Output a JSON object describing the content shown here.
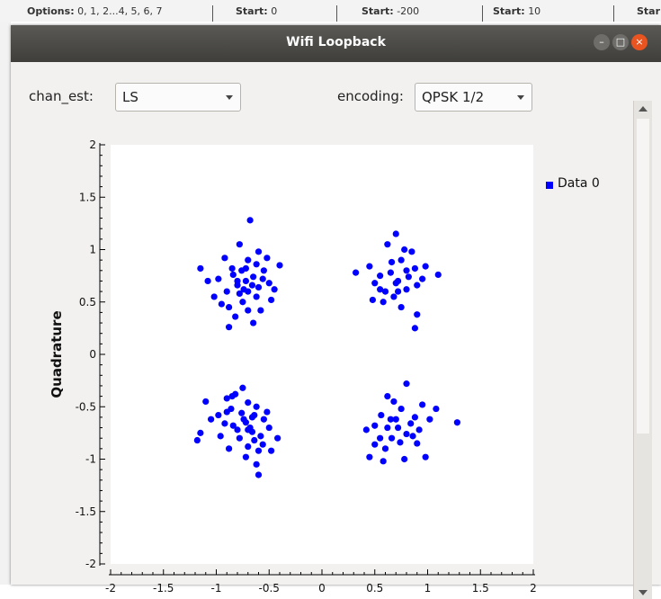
{
  "background": {
    "cells": [
      {
        "prefix": "Options:",
        "text": "0, 1, 2...4, 5, 6, 7"
      },
      {
        "prefix": "Start:",
        "text": "0"
      },
      {
        "prefix": "Start:",
        "text": "-200"
      },
      {
        "prefix": "Start:",
        "text": "10"
      },
      {
        "prefix": "Star",
        "text": ""
      }
    ]
  },
  "window": {
    "title": "Wifi Loopback",
    "buttons": {
      "minimize": "–",
      "maximize": "□",
      "close": "×"
    },
    "colors": {
      "minimize": "#6e6d69",
      "maximize": "#6e6d69",
      "close": "#e95420"
    }
  },
  "controls": {
    "chan_est": {
      "label": "chan_est:",
      "value": "LS"
    },
    "encoding": {
      "label": "encoding:",
      "value": "QPSK 1/2"
    }
  },
  "chart_data": {
    "type": "scatter",
    "title": "",
    "xlabel": "",
    "ylabel": "Quadrature",
    "xlim": [
      -2,
      2
    ],
    "ylim": [
      -2,
      2
    ],
    "grid": false,
    "legend_position": "top-right",
    "x_ticks": [
      -2,
      -1.5,
      -1,
      -0.5,
      0,
      0.5,
      1,
      1.5,
      2
    ],
    "y_ticks": [
      2,
      1.5,
      1,
      0.5,
      0,
      -0.5,
      -1,
      -1.5,
      -2
    ],
    "x_tick_labels": [
      "-2",
      "-1.5",
      "-1",
      "-0.5",
      "0",
      "0.5",
      "1",
      "1.5",
      "2"
    ],
    "y_tick_labels": [
      "2",
      "1.5",
      "1",
      "0.5",
      "0",
      "-0.5",
      "-1",
      "-1.5",
      "-2"
    ],
    "series": [
      {
        "name": "Data 0",
        "color": "#0000ff",
        "points": [
          [
            -0.72,
            0.7
          ],
          [
            -0.65,
            0.74
          ],
          [
            -0.8,
            0.66
          ],
          [
            -0.55,
            0.8
          ],
          [
            -0.9,
            0.6
          ],
          [
            -0.7,
            0.9
          ],
          [
            -0.62,
            0.55
          ],
          [
            -0.85,
            0.82
          ],
          [
            -0.5,
            0.68
          ],
          [
            -0.75,
            0.5
          ],
          [
            -0.68,
            1.28
          ],
          [
            -0.78,
            1.05
          ],
          [
            -0.92,
            0.92
          ],
          [
            -0.6,
            0.98
          ],
          [
            -0.45,
            0.62
          ],
          [
            -0.98,
            0.72
          ],
          [
            -0.7,
            0.42
          ],
          [
            -0.82,
            0.36
          ],
          [
            -0.65,
            0.3
          ],
          [
            -0.88,
            0.26
          ],
          [
            -1.15,
            0.82
          ],
          [
            -1.02,
            0.55
          ],
          [
            -0.4,
            0.85
          ],
          [
            -0.58,
            0.42
          ],
          [
            -0.95,
            0.48
          ],
          [
            -0.74,
            0.62
          ],
          [
            -0.66,
            0.66
          ],
          [
            -0.56,
            0.72
          ],
          [
            -0.84,
            0.76
          ],
          [
            -0.78,
            0.58
          ],
          [
            -1.08,
            0.7
          ],
          [
            -0.48,
            0.52
          ],
          [
            -0.62,
            0.86
          ],
          [
            -0.76,
            0.8
          ],
          [
            -0.52,
            0.92
          ],
          [
            -0.88,
            0.45
          ],
          [
            -0.7,
            0.6
          ],
          [
            -0.6,
            0.64
          ],
          [
            -0.8,
            0.7
          ],
          [
            -0.72,
            0.82
          ],
          [
            0.72,
            0.7
          ],
          [
            0.65,
            0.78
          ],
          [
            0.8,
            0.62
          ],
          [
            0.55,
            0.75
          ],
          [
            0.88,
            0.82
          ],
          [
            0.6,
            0.6
          ],
          [
            0.75,
            0.9
          ],
          [
            0.9,
            0.66
          ],
          [
            0.5,
            0.68
          ],
          [
            0.68,
            0.55
          ],
          [
            0.7,
            1.15
          ],
          [
            0.62,
            1.05
          ],
          [
            0.78,
            1.0
          ],
          [
            0.85,
            0.98
          ],
          [
            0.32,
            0.78
          ],
          [
            0.45,
            0.84
          ],
          [
            0.95,
            0.72
          ],
          [
            1.1,
            0.76
          ],
          [
            0.75,
            0.45
          ],
          [
            0.9,
            0.38
          ],
          [
            0.88,
            0.25
          ],
          [
            0.58,
            0.5
          ],
          [
            0.66,
            0.88
          ],
          [
            0.82,
            0.74
          ],
          [
            0.72,
            0.6
          ],
          [
            0.55,
            0.62
          ],
          [
            0.98,
            0.84
          ],
          [
            0.48,
            0.52
          ],
          [
            0.7,
            0.68
          ],
          [
            0.8,
            0.8
          ],
          [
            -0.72,
            -0.65
          ],
          [
            -0.66,
            -0.6
          ],
          [
            -0.8,
            -0.72
          ],
          [
            -0.58,
            -0.78
          ],
          [
            -0.9,
            -0.55
          ],
          [
            -0.7,
            -0.88
          ],
          [
            -0.62,
            -0.5
          ],
          [
            -0.85,
            -0.4
          ],
          [
            -0.5,
            -0.7
          ],
          [
            -0.75,
            -0.32
          ],
          [
            -0.82,
            -0.38
          ],
          [
            -0.9,
            -0.42
          ],
          [
            -1.1,
            -0.45
          ],
          [
            -1.15,
            -0.75
          ],
          [
            -1.05,
            -0.62
          ],
          [
            -0.96,
            -0.78
          ],
          [
            -0.42,
            -0.8
          ],
          [
            -0.48,
            -0.92
          ],
          [
            -0.62,
            -1.05
          ],
          [
            -0.6,
            -1.15
          ],
          [
            -0.72,
            -0.98
          ],
          [
            -0.88,
            -0.9
          ],
          [
            -0.98,
            -0.58
          ],
          [
            -0.55,
            -0.62
          ],
          [
            -0.68,
            -0.7
          ],
          [
            -0.76,
            -0.56
          ],
          [
            -0.64,
            -0.82
          ],
          [
            -0.52,
            -0.55
          ],
          [
            -0.84,
            -0.68
          ],
          [
            -0.7,
            -0.46
          ],
          [
            -1.18,
            -0.82
          ],
          [
            -0.6,
            -0.92
          ],
          [
            -0.78,
            -0.8
          ],
          [
            -0.66,
            -0.74
          ],
          [
            -0.92,
            -0.66
          ],
          [
            -0.56,
            -0.86
          ],
          [
            -0.74,
            -0.62
          ],
          [
            -0.86,
            -0.52
          ],
          [
            -0.64,
            -0.58
          ],
          [
            -0.7,
            -0.72
          ],
          [
            0.72,
            -0.7
          ],
          [
            0.65,
            -0.62
          ],
          [
            0.8,
            -0.76
          ],
          [
            0.55,
            -0.8
          ],
          [
            0.88,
            -0.6
          ],
          [
            0.6,
            -0.9
          ],
          [
            0.75,
            -0.52
          ],
          [
            0.9,
            -0.85
          ],
          [
            0.5,
            -0.68
          ],
          [
            0.68,
            -0.45
          ],
          [
            0.8,
            -0.28
          ],
          [
            0.62,
            -0.4
          ],
          [
            0.95,
            -0.48
          ],
          [
            1.08,
            -0.52
          ],
          [
            1.28,
            -0.65
          ],
          [
            0.42,
            -0.72
          ],
          [
            0.45,
            -0.98
          ],
          [
            0.58,
            -1.02
          ],
          [
            0.78,
            -1.0
          ],
          [
            0.98,
            -0.98
          ],
          [
            0.7,
            -0.62
          ],
          [
            0.84,
            -0.66
          ],
          [
            0.66,
            -0.8
          ],
          [
            0.56,
            -0.58
          ],
          [
            0.92,
            -0.72
          ],
          [
            0.74,
            -0.84
          ],
          [
            0.62,
            -0.7
          ],
          [
            0.86,
            -0.78
          ],
          [
            1.02,
            -0.62
          ],
          [
            0.5,
            -0.86
          ]
        ]
      }
    ]
  }
}
